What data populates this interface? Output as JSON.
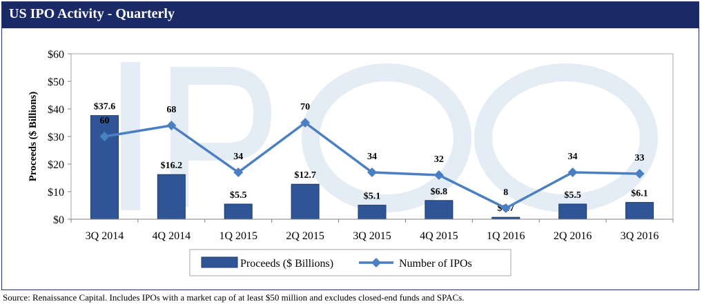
{
  "header": {
    "title": "US IPO Activity - Quarterly"
  },
  "source_note": "Source: Renaissance Capital. Includes IPOs with a market cap of at least $50 million and excludes closed-end funds and SPACs.",
  "colors": {
    "header_bg": "#1a2a66",
    "bar": "#2f5597",
    "bar_stroke": "#1f3a6e",
    "line": "#4a7fc1",
    "plot_bg": "#ffffff",
    "watermark": "#e4ecf5"
  },
  "chart_data": {
    "type": "bar",
    "categories": [
      "3Q 2014",
      "4Q 2014",
      "1Q 2015",
      "2Q 2015",
      "3Q 2015",
      "4Q 2015",
      "1Q 2016",
      "2Q 2016",
      "3Q 2016"
    ],
    "series": [
      {
        "name": "Proceeds ($ Billions)",
        "type": "bar",
        "values": [
          37.6,
          16.2,
          5.5,
          12.7,
          5.1,
          6.8,
          0.7,
          5.5,
          6.1
        ],
        "labels": [
          "$37.6",
          "$16.2",
          "$5.5",
          "$12.7",
          "$5.1",
          "$6.8",
          "$0.7",
          "$5.5",
          "$6.1"
        ]
      },
      {
        "name": "Number of IPOs",
        "type": "line",
        "values": [
          60,
          68,
          34,
          70,
          34,
          32,
          8,
          34,
          33
        ],
        "labels": [
          "60",
          "68",
          "34",
          "70",
          "34",
          "32",
          "8",
          "34",
          "33"
        ]
      }
    ],
    "ylabel": "Proceeds ($ Billions)",
    "ylim": [
      0,
      60
    ],
    "yticks": [
      "$0",
      "$10",
      "$20",
      "$30",
      "$40",
      "$50",
      "$60"
    ],
    "legend": "bottom",
    "grid": false
  }
}
